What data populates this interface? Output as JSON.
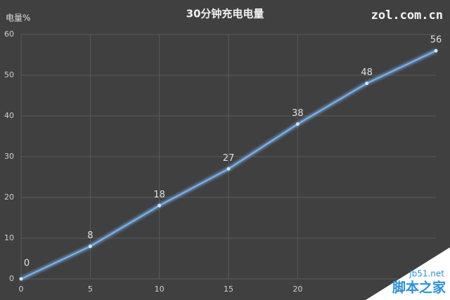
{
  "chart_data": {
    "type": "line",
    "title": "30分钟充电电量",
    "y_label": "电量%",
    "source": "zol.com.cn",
    "watermark": [
      "jb51.net",
      "脚本之家"
    ],
    "x": [
      0,
      5,
      10,
      15,
      20,
      25,
      30
    ],
    "series": [
      {
        "name": "电量",
        "color": "#7ab4f0",
        "values": [
          0,
          8,
          18,
          27,
          38,
          48,
          56
        ]
      }
    ],
    "xlim": [
      0,
      30
    ],
    "xticks": [
      0,
      5,
      10,
      15,
      20
    ],
    "ylim": [
      0,
      60
    ],
    "yticks": [
      0,
      10,
      20,
      30,
      40,
      50,
      60
    ],
    "grid": true
  }
}
